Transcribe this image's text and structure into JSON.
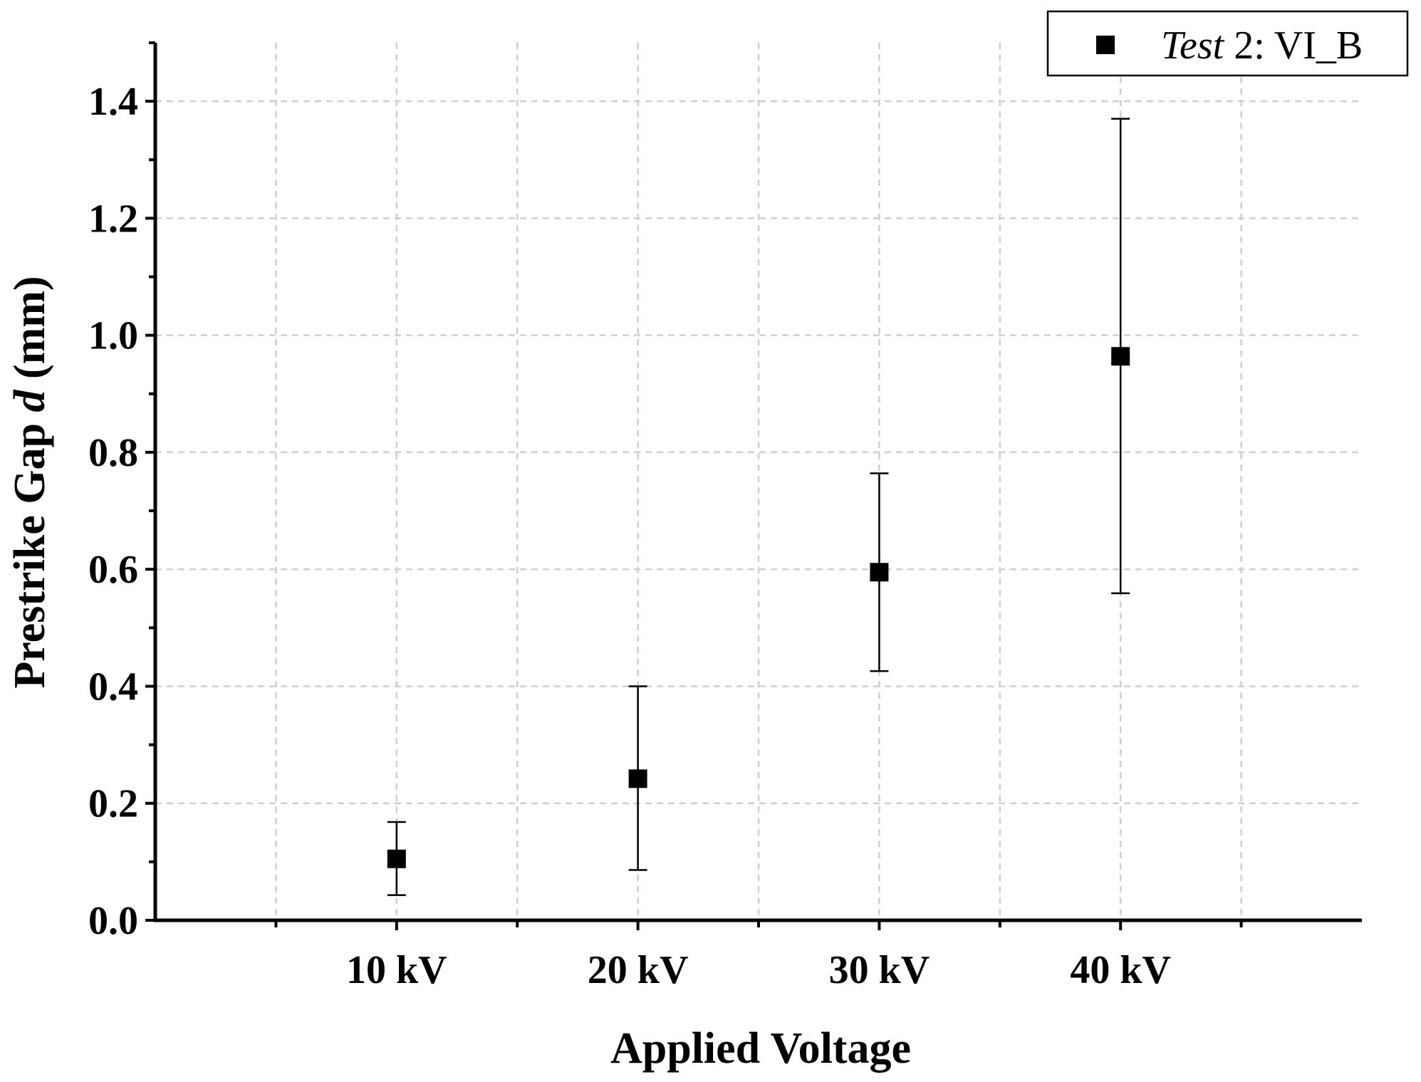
{
  "chart_data": {
    "type": "scatter",
    "title": "",
    "xlabel": "Applied Voltage",
    "ylabel": {
      "prefix": "Prestrike Gap ",
      "var": "d",
      "suffix": " (mm)"
    },
    "categories": [
      "10 kV",
      "20 kV",
      "30 kV",
      "40 kV"
    ],
    "ylim": [
      0,
      1.5
    ],
    "yticks": [
      "0.0",
      "0.2",
      "0.4",
      "0.6",
      "0.8",
      "1.0",
      "1.2",
      "1.4"
    ],
    "grid": true,
    "legend_position": "top-right",
    "series": [
      {
        "name": "Test 2: VI_B",
        "legend": {
          "italic": "Test",
          "rest": " 2: VI_B"
        },
        "marker": "square",
        "values": [
          0.105,
          0.242,
          0.595,
          0.964
        ],
        "err_low": [
          0.043,
          0.086,
          0.426,
          0.559
        ],
        "err_high": [
          0.168,
          0.4,
          0.764,
          1.37
        ]
      }
    ],
    "colors": {
      "marker": "#000000",
      "grid": "#d0d0d0",
      "axis": "#000000"
    }
  }
}
